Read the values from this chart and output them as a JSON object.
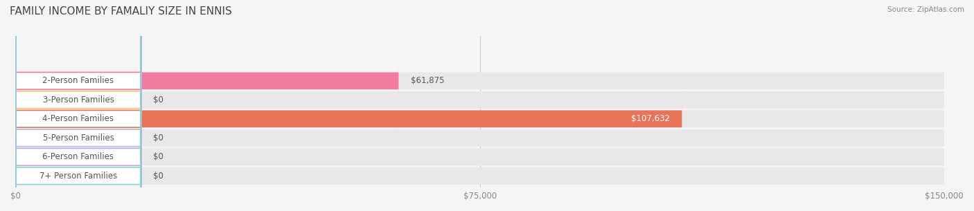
{
  "title": "FAMILY INCOME BY FAMALIY SIZE IN ENNIS",
  "source": "Source: ZipAtlas.com",
  "categories": [
    "2-Person Families",
    "3-Person Families",
    "4-Person Families",
    "5-Person Families",
    "6-Person Families",
    "7+ Person Families"
  ],
  "values": [
    61875,
    0,
    107632,
    0,
    0,
    0
  ],
  "bar_colors": [
    "#f27ca0",
    "#f5c97a",
    "#e8745a",
    "#a8bfe0",
    "#c9a8d8",
    "#8dd0d8"
  ],
  "label_colors": [
    "#f27ca0",
    "#f5c97a",
    "#e8745a",
    "#a8bfe0",
    "#c9a8d8",
    "#8dd0d8"
  ],
  "value_label_inside": [
    false,
    false,
    true,
    false,
    false,
    false
  ],
  "xlim": [
    0,
    150000
  ],
  "xticks": [
    0,
    75000,
    150000
  ],
  "xtick_labels": [
    "$0",
    "$75,000",
    "$150,000"
  ],
  "background_color": "#f5f5f5",
  "bar_bg_color": "#e8e8e8",
  "row_bg_colors": [
    "#ffffff",
    "#f5f5f5"
  ],
  "title_fontsize": 11,
  "label_fontsize": 8.5,
  "value_fontsize": 8.5,
  "figwidth": 14.06,
  "figheight": 3.05
}
